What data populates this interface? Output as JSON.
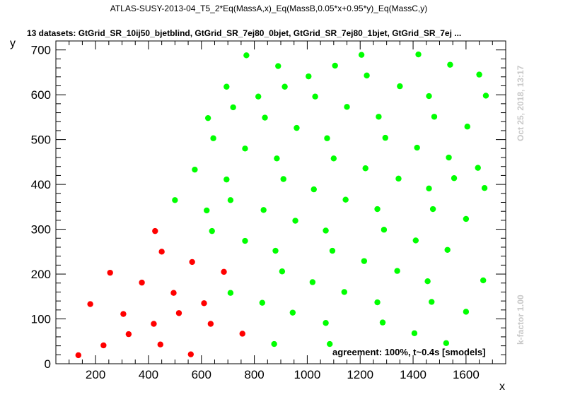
{
  "colors": {
    "allowed": "#00ff00",
    "excluded": "#ff0000",
    "axis": "#000000",
    "side_text": "#c8c8c8"
  },
  "chart_data": {
    "type": "scatter",
    "title": "ATLAS-SUSY-2013-04_T5_2*Eq(MassA,x)_Eq(MassB,0.05*x+0.95*y)_Eq(MassC,y)",
    "subtitle": "13 datasets: GtGrid_SR_10ij50_bjetblind, GtGrid_SR_7ej80_0bjet, GtGrid_SR_7ej80_1bjet, GtGrid_SR_7ej ...",
    "xlabel": "x",
    "ylabel": "y",
    "xlim": [
      50,
      1750
    ],
    "ylim": [
      0,
      720
    ],
    "x_ticks": [
      200,
      400,
      600,
      800,
      1000,
      1200,
      1400,
      1600
    ],
    "y_ticks": [
      0,
      100,
      200,
      300,
      400,
      500,
      600,
      700
    ],
    "timestamp": "Oct 25, 2018, 13:17",
    "kfactor": "k-factor 1.00",
    "annotation": "agreement: 100%, t~0.4s [smodels]",
    "series": [
      {
        "color": "#00ff00",
        "points": [
          [
            500,
            365
          ],
          [
            575,
            433
          ],
          [
            620,
            342
          ],
          [
            625,
            548
          ],
          [
            640,
            296
          ],
          [
            645,
            503
          ],
          [
            695,
            618
          ],
          [
            695,
            411
          ],
          [
            710,
            365
          ],
          [
            710,
            158
          ],
          [
            720,
            572
          ],
          [
            765,
            480
          ],
          [
            765,
            274
          ],
          [
            770,
            688
          ],
          [
            815,
            596
          ],
          [
            830,
            136
          ],
          [
            835,
            343
          ],
          [
            840,
            549
          ],
          [
            875,
            44
          ],
          [
            880,
            252
          ],
          [
            885,
            458
          ],
          [
            890,
            664
          ],
          [
            905,
            206
          ],
          [
            910,
            412
          ],
          [
            915,
            618
          ],
          [
            945,
            114
          ],
          [
            955,
            319
          ],
          [
            960,
            526
          ],
          [
            1005,
            641
          ],
          [
            1020,
            182
          ],
          [
            1025,
            389
          ],
          [
            1030,
            596
          ],
          [
            1070,
            91
          ],
          [
            1070,
            297
          ],
          [
            1075,
            503
          ],
          [
            1085,
            44
          ],
          [
            1095,
            252
          ],
          [
            1100,
            458
          ],
          [
            1105,
            665
          ],
          [
            1140,
            160
          ],
          [
            1145,
            366
          ],
          [
            1150,
            573
          ],
          [
            1205,
            689
          ],
          [
            1215,
            229
          ],
          [
            1220,
            436
          ],
          [
            1225,
            643
          ],
          [
            1265,
            137
          ],
          [
            1265,
            345
          ],
          [
            1270,
            551
          ],
          [
            1285,
            92
          ],
          [
            1290,
            299
          ],
          [
            1295,
            504
          ],
          [
            1340,
            207
          ],
          [
            1345,
            413
          ],
          [
            1350,
            619
          ],
          [
            1405,
            68
          ],
          [
            1410,
            275
          ],
          [
            1415,
            482
          ],
          [
            1420,
            690
          ],
          [
            1455,
            184
          ],
          [
            1460,
            391
          ],
          [
            1460,
            597
          ],
          [
            1470,
            138
          ],
          [
            1475,
            345
          ],
          [
            1480,
            551
          ],
          [
            1525,
            46
          ],
          [
            1530,
            254
          ],
          [
            1535,
            460
          ],
          [
            1540,
            667
          ],
          [
            1555,
            414
          ],
          [
            1600,
            116
          ],
          [
            1600,
            323
          ],
          [
            1605,
            529
          ],
          [
            1645,
            437
          ],
          [
            1650,
            645
          ],
          [
            1665,
            186
          ],
          [
            1670,
            392
          ],
          [
            1675,
            598
          ]
        ]
      },
      {
        "color": "#ff0000",
        "points": [
          [
            135,
            19
          ],
          [
            180,
            133
          ],
          [
            230,
            41
          ],
          [
            255,
            203
          ],
          [
            305,
            111
          ],
          [
            325,
            66
          ],
          [
            375,
            181
          ],
          [
            420,
            89
          ],
          [
            425,
            296
          ],
          [
            445,
            43
          ],
          [
            450,
            250
          ],
          [
            495,
            158
          ],
          [
            515,
            113
          ],
          [
            560,
            21
          ],
          [
            565,
            227
          ],
          [
            610,
            135
          ],
          [
            635,
            89
          ],
          [
            685,
            205
          ],
          [
            755,
            67
          ]
        ]
      }
    ]
  }
}
